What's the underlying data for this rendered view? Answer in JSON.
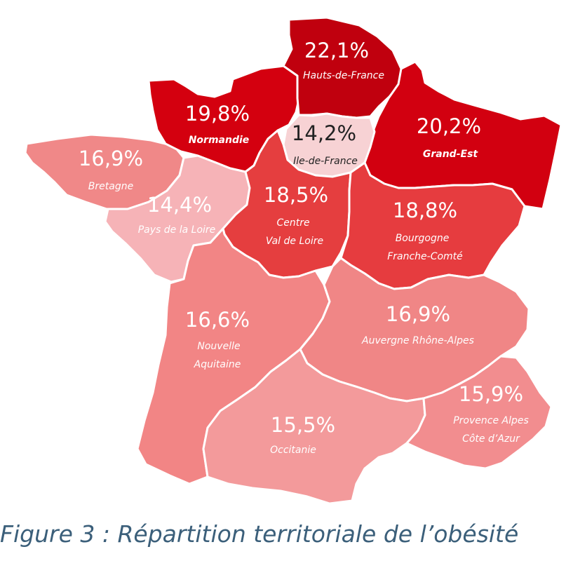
{
  "caption": "Figure 3 : Répartition territoriale de l’obésité",
  "regions": {
    "hauts_de_france": {
      "name": "Hauts-de-France",
      "value": "22,1%",
      "color": "#c0000e"
    },
    "grand_est": {
      "name": "Grand-Est",
      "value": "20,2%",
      "color": "#d20010"
    },
    "normandie": {
      "name": "Normandie",
      "value": "19,8%",
      "color": "#d4000f"
    },
    "ile_de_france": {
      "name": "Ile-de-France",
      "value": "14,2%",
      "color": "#f7d2d4"
    },
    "bretagne": {
      "name": "Bretagne",
      "value": "16,9%",
      "color": "#f08888"
    },
    "pays_de_la_loire": {
      "name": "Pays de la Loire",
      "value": "14,4%",
      "color": "#f6b3b7"
    },
    "centre_val_de_loire": {
      "name_line1": "Centre",
      "name_line2": "Val de Loire",
      "value": "18,5%",
      "color": "#e53e3f"
    },
    "bourgogne_franche_comte": {
      "name_line1": "Bourgogne",
      "name_line2": "Franche-Comté",
      "value": "18,8%",
      "color": "#e63c3f"
    },
    "nouvelle_aquitaine": {
      "name_line1": "Nouvelle",
      "name_line2": "Aquitaine",
      "value": "16,6%",
      "color": "#f28585"
    },
    "auvergne_rhone_alpes": {
      "name": "Auvergne Rhône-Alpes",
      "value": "16,9%",
      "color": "#f08686"
    },
    "occitanie": {
      "name": "Occitanie",
      "value": "15,5%",
      "color": "#f39a9b"
    },
    "paca": {
      "name_line1": "Provence Alpes",
      "name_line2": "Côte d’Azur",
      "value": "15,9%",
      "color": "#f28d8f"
    }
  }
}
